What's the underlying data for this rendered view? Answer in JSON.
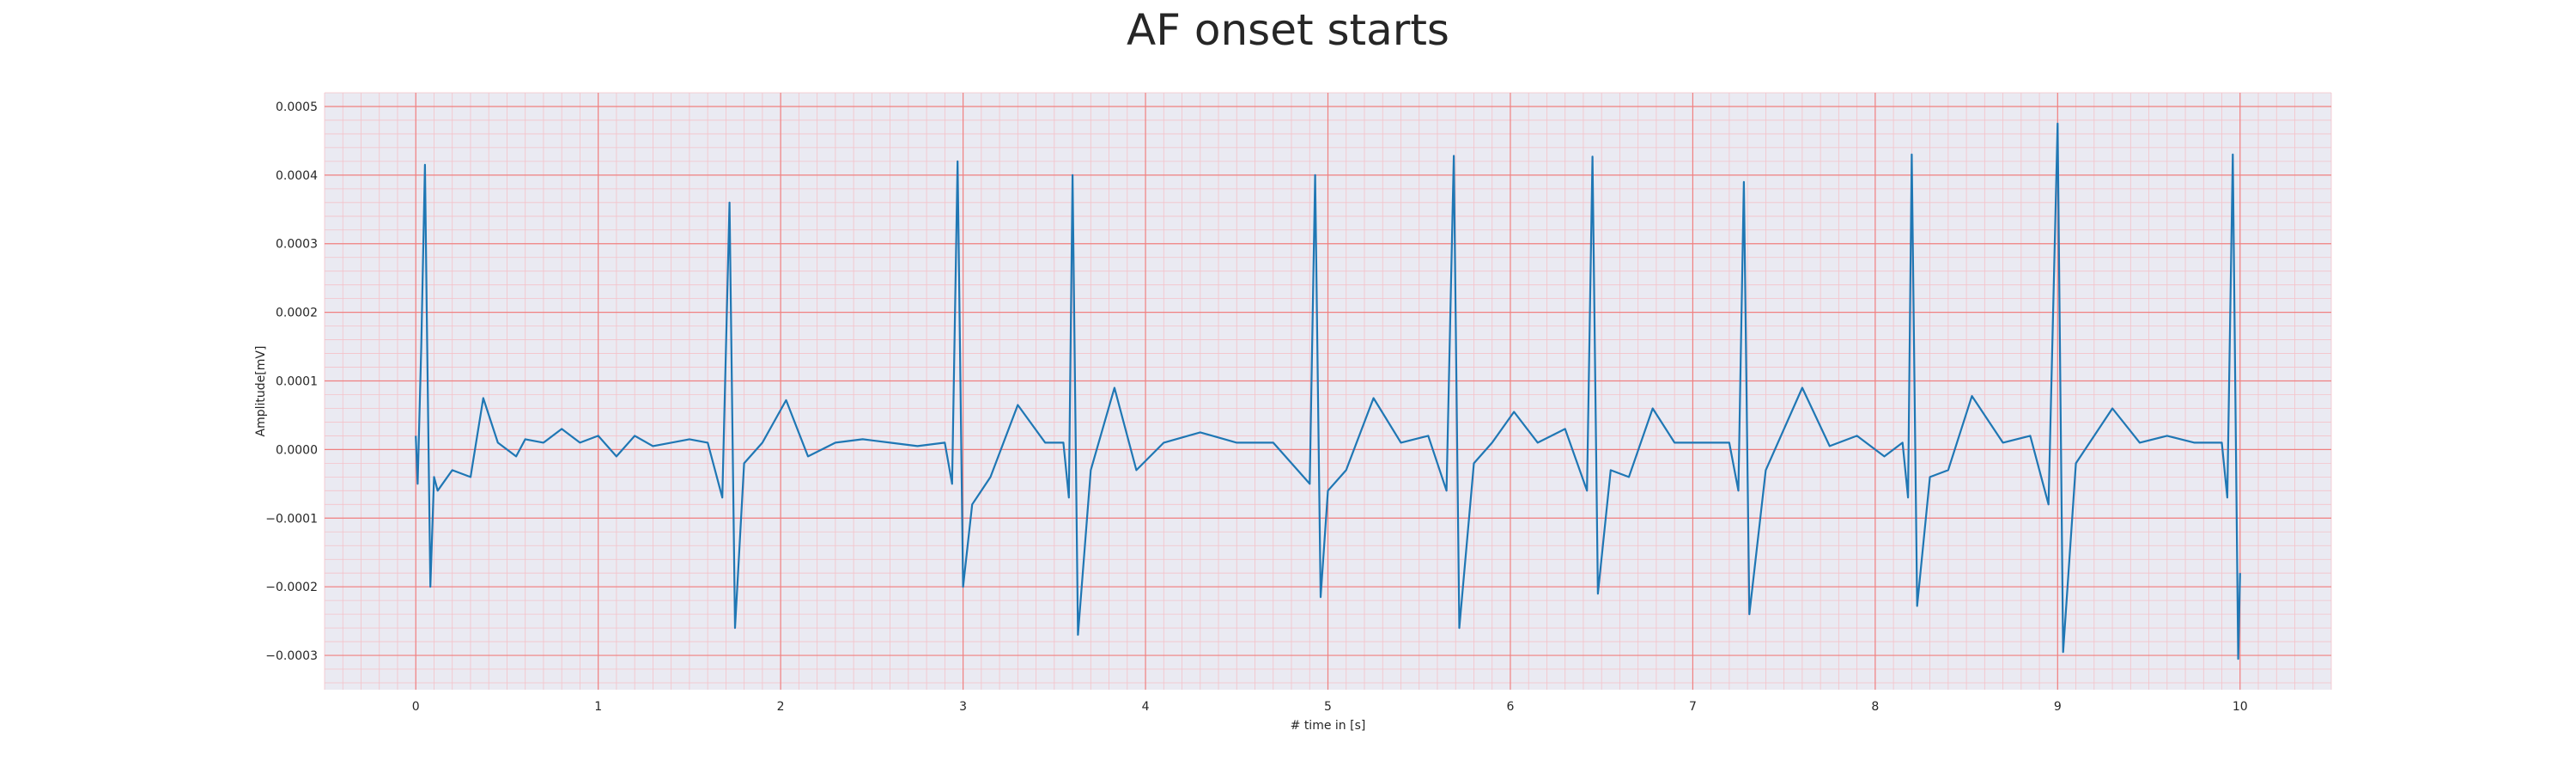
{
  "chart_data": {
    "type": "line",
    "title": "AF onset starts",
    "xlabel": "# time in [s]",
    "ylabel": "Amplitude[mV]",
    "xlim": [
      -0.5,
      10.5
    ],
    "ylim": [
      -0.00035,
      0.00052
    ],
    "x_ticks": [
      0,
      1,
      2,
      3,
      4,
      5,
      6,
      7,
      8,
      9,
      10
    ],
    "x_tick_labels": [
      "0",
      "1",
      "2",
      "3",
      "4",
      "5",
      "6",
      "7",
      "8",
      "9",
      "10"
    ],
    "y_ticks": [
      -0.0003,
      -0.0002,
      -0.0001,
      0,
      0.0001,
      0.0002,
      0.0003,
      0.0004,
      0.0005
    ],
    "y_tick_labels": [
      "−0.0003",
      "−0.0002",
      "−0.0001",
      "0.0000",
      "0.0001",
      "0.0002",
      "0.0003",
      "0.0004",
      "0.0005"
    ],
    "grid": {
      "major": true,
      "minor": true
    },
    "colors": {
      "plot_background": "#eaeaf2",
      "major_grid": "#f08080",
      "minor_grid": "#f4c2c9",
      "line": "#1f77b4"
    },
    "beats": [
      {
        "t": 0.05,
        "peak": 0.000415,
        "trough": -0.0002
      },
      {
        "t": 1.72,
        "peak": 0.00036,
        "trough": -0.00026
      },
      {
        "t": 2.97,
        "peak": 0.00042,
        "trough": -0.0002
      },
      {
        "t": 3.6,
        "peak": 0.0004,
        "trough": -0.00027
      },
      {
        "t": 4.93,
        "peak": 0.0004,
        "trough": -0.000215
      },
      {
        "t": 5.69,
        "peak": 0.000428,
        "trough": -0.00026
      },
      {
        "t": 6.45,
        "peak": 0.000427,
        "trough": -0.00021
      },
      {
        "t": 7.28,
        "peak": 0.00039,
        "trough": -0.00024
      },
      {
        "t": 8.2,
        "peak": 0.00043,
        "trough": -0.000228
      },
      {
        "t": 9.0,
        "peak": 0.000475,
        "trough": -0.000295
      },
      {
        "t": 9.96,
        "peak": 0.00043,
        "trough": -0.000305
      }
    ],
    "waves": [
      {
        "t": 0.37,
        "a": 7.5e-05
      },
      {
        "t": 2.03,
        "a": 7.2e-05
      },
      {
        "t": 3.3,
        "a": 6.5e-05
      },
      {
        "t": 3.83,
        "a": 9e-05
      },
      {
        "t": 5.25,
        "a": 7.5e-05
      },
      {
        "t": 6.02,
        "a": 5.5e-05
      },
      {
        "t": 6.78,
        "a": 6e-05
      },
      {
        "t": 7.6,
        "a": 9e-05
      },
      {
        "t": 8.53,
        "a": 7.8e-05
      },
      {
        "t": 9.3,
        "a": 6e-05
      }
    ],
    "series": [
      {
        "values": [
          [
            0.0,
            2e-05
          ],
          [
            0.01,
            -5e-05
          ],
          [
            0.03,
            0.00015
          ],
          [
            0.05,
            0.000415
          ],
          [
            0.06,
            0.0002
          ],
          [
            0.08,
            -0.0002
          ],
          [
            0.1,
            -4e-05
          ],
          [
            0.12,
            -6e-05
          ],
          [
            0.2,
            -3e-05
          ],
          [
            0.3,
            -4e-05
          ],
          [
            0.37,
            7.5e-05
          ],
          [
            0.45,
            1e-05
          ],
          [
            0.55,
            -1e-05
          ],
          [
            0.6,
            1.5e-05
          ],
          [
            0.7,
            1e-05
          ],
          [
            0.8,
            3e-05
          ],
          [
            0.9,
            1e-05
          ],
          [
            1.0,
            2e-05
          ],
          [
            1.1,
            -1e-05
          ],
          [
            1.2,
            2e-05
          ],
          [
            1.3,
            5e-06
          ],
          [
            1.4,
            1e-05
          ],
          [
            1.5,
            1.5e-05
          ],
          [
            1.6,
            1e-05
          ],
          [
            1.68,
            -7e-05
          ],
          [
            1.72,
            0.00036
          ],
          [
            1.75,
            -0.00026
          ],
          [
            1.8,
            -2e-05
          ],
          [
            1.9,
            1e-05
          ],
          [
            2.03,
            7.2e-05
          ],
          [
            2.15,
            -1e-05
          ],
          [
            2.3,
            1e-05
          ],
          [
            2.45,
            1.5e-05
          ],
          [
            2.6,
            1e-05
          ],
          [
            2.75,
            5e-06
          ],
          [
            2.9,
            1e-05
          ],
          [
            2.94,
            -5e-05
          ],
          [
            2.97,
            0.00042
          ],
          [
            3.0,
            -0.0002
          ],
          [
            3.05,
            -8e-05
          ],
          [
            3.15,
            -4e-05
          ],
          [
            3.3,
            6.5e-05
          ],
          [
            3.45,
            1e-05
          ],
          [
            3.55,
            1e-05
          ],
          [
            3.58,
            -7e-05
          ],
          [
            3.6,
            0.0004
          ],
          [
            3.63,
            -0.00027
          ],
          [
            3.7,
            -3e-05
          ],
          [
            3.83,
            9e-05
          ],
          [
            3.95,
            -3e-05
          ],
          [
            4.1,
            1e-05
          ],
          [
            4.3,
            2.5e-05
          ],
          [
            4.5,
            1e-05
          ],
          [
            4.7,
            1e-05
          ],
          [
            4.9,
            -5e-05
          ],
          [
            4.93,
            0.0004
          ],
          [
            4.96,
            -0.000215
          ],
          [
            5.0,
            -6e-05
          ],
          [
            5.1,
            -3e-05
          ],
          [
            5.25,
            7.5e-05
          ],
          [
            5.4,
            1e-05
          ],
          [
            5.55,
            2e-05
          ],
          [
            5.65,
            -6e-05
          ],
          [
            5.69,
            0.000428
          ],
          [
            5.72,
            -0.00026
          ],
          [
            5.8,
            -2e-05
          ],
          [
            5.9,
            1e-05
          ],
          [
            6.02,
            5.5e-05
          ],
          [
            6.15,
            1e-05
          ],
          [
            6.3,
            3e-05
          ],
          [
            6.42,
            -6e-05
          ],
          [
            6.45,
            0.000427
          ],
          [
            6.48,
            -0.00021
          ],
          [
            6.55,
            -3e-05
          ],
          [
            6.65,
            -4e-05
          ],
          [
            6.78,
            6e-05
          ],
          [
            6.9,
            1e-05
          ],
          [
            7.05,
            1e-05
          ],
          [
            7.2,
            1e-05
          ],
          [
            7.25,
            -6e-05
          ],
          [
            7.28,
            0.00039
          ],
          [
            7.31,
            -0.00024
          ],
          [
            7.4,
            -3e-05
          ],
          [
            7.6,
            9e-05
          ],
          [
            7.75,
            5e-06
          ],
          [
            7.9,
            2e-05
          ],
          [
            8.05,
            -1e-05
          ],
          [
            8.15,
            1e-05
          ],
          [
            8.18,
            -7e-05
          ],
          [
            8.2,
            0.00043
          ],
          [
            8.23,
            -0.000228
          ],
          [
            8.3,
            -4e-05
          ],
          [
            8.4,
            -3e-05
          ],
          [
            8.53,
            7.8e-05
          ],
          [
            8.7,
            1e-05
          ],
          [
            8.85,
            2e-05
          ],
          [
            8.95,
            -8e-05
          ],
          [
            9.0,
            0.000475
          ],
          [
            9.03,
            -0.000295
          ],
          [
            9.1,
            -2e-05
          ],
          [
            9.3,
            6e-05
          ],
          [
            9.45,
            1e-05
          ],
          [
            9.6,
            2e-05
          ],
          [
            9.75,
            1e-05
          ],
          [
            9.9,
            1e-05
          ],
          [
            9.93,
            -7e-05
          ],
          [
            9.96,
            0.00043
          ],
          [
            9.99,
            -0.000305
          ],
          [
            10.0,
            -0.00018
          ]
        ]
      }
    ]
  }
}
